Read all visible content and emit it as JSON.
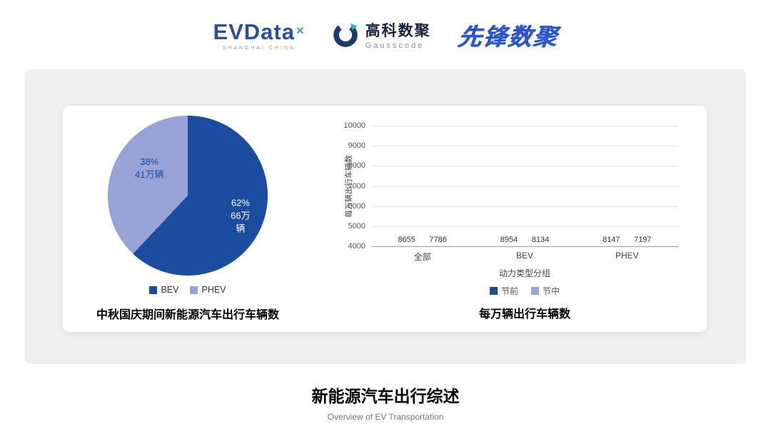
{
  "header": {
    "evdata": {
      "text": "EVData",
      "x_mark": "✕",
      "sub_left": "SHANGHAI",
      "sub_right": "CHINA"
    },
    "gausscode": {
      "cn": "高科数聚",
      "en": "Gausscode"
    },
    "xianfeng": "先锋数聚"
  },
  "colors": {
    "primary_blue": "#1a4da0",
    "light_blue": "#98a3d7",
    "panel_gray": "#efefef"
  },
  "chart_data": [
    {
      "type": "pie",
      "title": "中秋国庆期间新能源汽车出行车辆数",
      "slices": [
        {
          "name": "BEV",
          "percent": 62,
          "percent_label": "62%",
          "value_label": "66万辆",
          "color": "#1a4da0",
          "label_color": "#ffffff"
        },
        {
          "name": "PHEV",
          "percent": 38,
          "percent_label": "38%",
          "value_label": "41万辆",
          "color": "#98a3d7",
          "label_color": "#1a4da0"
        }
      ],
      "legend": [
        "BEV",
        "PHEV"
      ],
      "legend_position": "bottom"
    },
    {
      "type": "bar",
      "title": "每万辆出行车辆数",
      "categories": [
        "全部",
        "BEV",
        "PHEV"
      ],
      "series": [
        {
          "name": "节前",
          "values": [
            8655,
            8954,
            8147
          ],
          "color": "#1a4da0"
        },
        {
          "name": "节中",
          "values": [
            7786,
            8134,
            7197
          ],
          "color": "#98a3d7"
        }
      ],
      "xlabel": "动力类型分组",
      "ylabel": "每万辆出行车辆数",
      "ylim": [
        4000,
        10000
      ],
      "yticks": [
        4000,
        5000,
        6000,
        7000,
        8000,
        9000,
        10000
      ],
      "grid": true,
      "legend_position": "bottom"
    }
  ],
  "footer": {
    "title": "新能源汽车出行综述",
    "subtitle": "Overview of EV Transportation"
  }
}
